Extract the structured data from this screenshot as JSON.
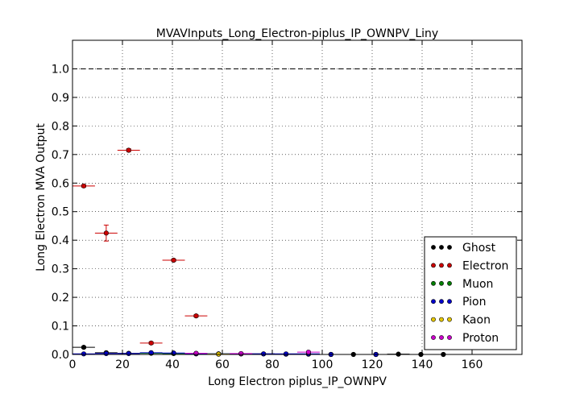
{
  "chart_data": {
    "type": "scatter",
    "title": "MVAVInputs_Long_Electron-piplus_IP_OWNPV_Liny",
    "xlabel": "Long Electron piplus_IP_OWNPV",
    "ylabel": "Long Electron MVA Output",
    "xlim": [
      0,
      180
    ],
    "ylim": [
      0,
      1.1
    ],
    "xticks": [
      0,
      20,
      40,
      60,
      80,
      100,
      120,
      140,
      160
    ],
    "xtick_labels": [
      "0",
      "20",
      "40",
      "60",
      "80",
      "100",
      "120",
      "140",
      "160"
    ],
    "yticks": [
      0.0,
      0.1,
      0.2,
      0.3,
      0.4,
      0.5,
      0.6,
      0.7,
      0.8,
      0.9,
      1.0
    ],
    "ytick_labels": [
      "0.0",
      "0.1",
      "0.2",
      "0.3",
      "0.4",
      "0.5",
      "0.6",
      "0.7",
      "0.8",
      "0.9",
      "1.0"
    ],
    "grid": true,
    "reference_line": 1.0,
    "legend_position": "lower-right",
    "series": [
      {
        "name": "Ghost",
        "color": "#000000",
        "xerr": 4.5,
        "points": [
          [
            4.5,
            0.025,
            0.003
          ],
          [
            13.5,
            0.006,
            0.002
          ],
          [
            22.5,
            0.004,
            0.002
          ],
          [
            31.5,
            0.005,
            0.002
          ],
          [
            40.5,
            0.004,
            0.002
          ],
          [
            49.5,
            0.003,
            0.002
          ],
          [
            58.5,
            0.002,
            0.001
          ],
          [
            67.5,
            0.002,
            0.001
          ],
          [
            76.5,
            0.002,
            0.001
          ],
          [
            85.5,
            0.001,
            0.001
          ],
          [
            94.5,
            0.001,
            0.001
          ],
          [
            103.5,
            0.0,
            0.0
          ],
          [
            112.5,
            0.0,
            0.0
          ],
          [
            121.5,
            0.0,
            0.0
          ],
          [
            130.5,
            0.001,
            0.001
          ],
          [
            139.5,
            0.0,
            0.0
          ],
          [
            148.5,
            0.0,
            0.0
          ]
        ]
      },
      {
        "name": "Electron",
        "color": "#cc0000",
        "xerr": 4.5,
        "points": [
          [
            4.5,
            0.59,
            0.004
          ],
          [
            13.5,
            0.425,
            0.028
          ],
          [
            22.5,
            0.715,
            0.005
          ],
          [
            31.5,
            0.04,
            0.004
          ],
          [
            40.5,
            0.33,
            0.004
          ],
          [
            49.5,
            0.135,
            0.004
          ]
        ]
      },
      {
        "name": "Muon",
        "color": "#008000",
        "xerr": 4.5,
        "points": [
          [
            31.5,
            0.004,
            0.002
          ],
          [
            40.5,
            0.003,
            0.002
          ],
          [
            58.5,
            0.002,
            0.002
          ]
        ]
      },
      {
        "name": "Pion",
        "color": "#0000cc",
        "xerr": 4.5,
        "points": [
          [
            4.5,
            0.002,
            0.001
          ],
          [
            13.5,
            0.003,
            0.001
          ],
          [
            22.5,
            0.003,
            0.001
          ],
          [
            31.5,
            0.006,
            0.002
          ],
          [
            40.5,
            0.005,
            0.002
          ],
          [
            49.5,
            0.002,
            0.001
          ],
          [
            58.5,
            0.002,
            0.001
          ],
          [
            67.5,
            0.002,
            0.001
          ],
          [
            76.5,
            0.002,
            0.001
          ],
          [
            85.5,
            0.002,
            0.001
          ],
          [
            94.5,
            0.002,
            0.001
          ],
          [
            103.5,
            0.0,
            0.0
          ],
          [
            121.5,
            0.0,
            0.0
          ]
        ]
      },
      {
        "name": "Kaon",
        "color": "#e6c700",
        "xerr": 4.5,
        "points": [
          [
            58.5,
            0.001,
            0.001
          ]
        ]
      },
      {
        "name": "Proton",
        "color": "#cc00cc",
        "xerr": 4.5,
        "points": [
          [
            49.5,
            0.004,
            0.002
          ],
          [
            67.5,
            0.003,
            0.002
          ],
          [
            94.5,
            0.008,
            0.002
          ]
        ]
      }
    ]
  }
}
